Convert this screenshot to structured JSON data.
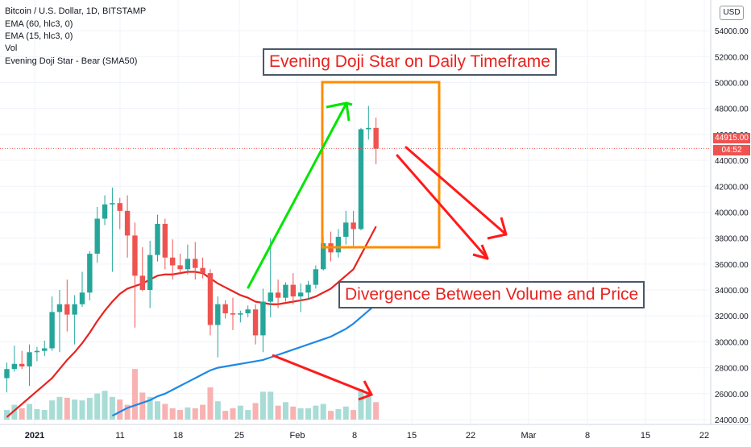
{
  "header": {
    "symbol": "Bitcoin / U.S. Dollar, 1D, BITSTAMP",
    "indicators": [
      "EMA (60, hlc3, 0)",
      "EMA (15, hlc3, 0)",
      "Vol",
      "Evening Doji Star - Bear (SMA50)"
    ]
  },
  "currency_button": "USD",
  "last_price_label": "44915.00",
  "countdown_label": "04:52",
  "annotations": {
    "top": "Evening Doji Star on Daily Timeframe",
    "bottom": "Divergence Between Volume and Price"
  },
  "colors": {
    "up": "#26a69a",
    "down": "#ef5350",
    "ema15": "#e8231f",
    "ema60": "#1e88e5",
    "arrow_green": "#00e600",
    "arrow_red": "#ff1a1a",
    "box": "#ff8c00"
  },
  "chart_data": {
    "type": "candlestick",
    "title": "Bitcoin / U.S. Dollar, 1D, BITSTAMP",
    "x_ticks": [
      "2021",
      "11",
      "18",
      "25",
      "Feb",
      "8",
      "15",
      "22",
      "Mar",
      "8",
      "15",
      "22"
    ],
    "y_ticks": [
      "54000.00",
      "52000.00",
      "50000.00",
      "48000.00",
      "46000.00",
      "44000.00",
      "42000.00",
      "40000.00",
      "38000.00",
      "36000.00",
      "34000.00",
      "32000.00",
      "30000.00",
      "28000.00",
      "26000.00",
      "24000.00"
    ],
    "ylim": [
      24000,
      55500
    ],
    "grid": true,
    "candles": [
      {
        "o": 27200,
        "h": 28400,
        "l": 26100,
        "c": 27900
      },
      {
        "o": 27900,
        "h": 29700,
        "l": 27700,
        "c": 28300
      },
      {
        "o": 28300,
        "h": 29300,
        "l": 27900,
        "c": 28100
      },
      {
        "o": 28100,
        "h": 29800,
        "l": 26600,
        "c": 29200
      },
      {
        "o": 29200,
        "h": 29600,
        "l": 28500,
        "c": 29300
      },
      {
        "o": 29300,
        "h": 30100,
        "l": 28900,
        "c": 29500
      },
      {
        "o": 29500,
        "h": 33500,
        "l": 29300,
        "c": 32300
      },
      {
        "o": 32300,
        "h": 34000,
        "l": 29200,
        "c": 32900
      },
      {
        "o": 32900,
        "h": 34800,
        "l": 30800,
        "c": 32100
      },
      {
        "o": 32100,
        "h": 33600,
        "l": 29800,
        "c": 32900
      },
      {
        "o": 32900,
        "h": 35400,
        "l": 32700,
        "c": 33800
      },
      {
        "o": 33800,
        "h": 37000,
        "l": 33200,
        "c": 36800
      },
      {
        "o": 36800,
        "h": 40400,
        "l": 36100,
        "c": 39500
      },
      {
        "o": 39500,
        "h": 41300,
        "l": 39000,
        "c": 40600
      },
      {
        "o": 40600,
        "h": 41900,
        "l": 35400,
        "c": 40700
      },
      {
        "o": 40700,
        "h": 41100,
        "l": 38700,
        "c": 40100
      },
      {
        "o": 40100,
        "h": 41300,
        "l": 36500,
        "c": 38200
      },
      {
        "o": 38200,
        "h": 39200,
        "l": 31100,
        "c": 35100
      },
      {
        "o": 35100,
        "h": 37300,
        "l": 33900,
        "c": 34000
      },
      {
        "o": 34000,
        "h": 37800,
        "l": 32600,
        "c": 36700
      },
      {
        "o": 36700,
        "h": 39800,
        "l": 36200,
        "c": 39100
      },
      {
        "o": 39100,
        "h": 39500,
        "l": 35600,
        "c": 36500
      },
      {
        "o": 36500,
        "h": 37900,
        "l": 34800,
        "c": 35900
      },
      {
        "o": 35900,
        "h": 36800,
        "l": 35200,
        "c": 35600
      },
      {
        "o": 35600,
        "h": 37500,
        "l": 35200,
        "c": 36400
      },
      {
        "o": 36400,
        "h": 37700,
        "l": 34800,
        "c": 35700
      },
      {
        "o": 35700,
        "h": 36500,
        "l": 34900,
        "c": 35300
      },
      {
        "o": 35300,
        "h": 35600,
        "l": 30500,
        "c": 31300
      },
      {
        "o": 31300,
        "h": 33500,
        "l": 28800,
        "c": 32900
      },
      {
        "o": 32900,
        "h": 33200,
        "l": 31800,
        "c": 32200
      },
      {
        "o": 32200,
        "h": 33400,
        "l": 30900,
        "c": 32100
      },
      {
        "o": 32100,
        "h": 32400,
        "l": 31500,
        "c": 32200
      },
      {
        "o": 32200,
        "h": 32800,
        "l": 31900,
        "c": 32500
      },
      {
        "o": 32500,
        "h": 32900,
        "l": 29800,
        "c": 30500
      },
      {
        "o": 30500,
        "h": 34100,
        "l": 29200,
        "c": 33100
      },
      {
        "o": 33100,
        "h": 38000,
        "l": 31900,
        "c": 33800
      },
      {
        "o": 33800,
        "h": 34800,
        "l": 32600,
        "c": 33400
      },
      {
        "o": 33400,
        "h": 34600,
        "l": 33100,
        "c": 34400
      },
      {
        "o": 34400,
        "h": 35300,
        "l": 32900,
        "c": 33500
      },
      {
        "o": 33500,
        "h": 34500,
        "l": 32300,
        "c": 33800
      },
      {
        "o": 33800,
        "h": 34700,
        "l": 33300,
        "c": 34400
      },
      {
        "o": 34400,
        "h": 35900,
        "l": 34100,
        "c": 35600
      },
      {
        "o": 35600,
        "h": 38100,
        "l": 35500,
        "c": 37600
      },
      {
        "o": 37600,
        "h": 38500,
        "l": 36200,
        "c": 36900
      },
      {
        "o": 36900,
        "h": 38700,
        "l": 36500,
        "c": 38100
      },
      {
        "o": 38100,
        "h": 40100,
        "l": 37500,
        "c": 39200
      },
      {
        "o": 39200,
        "h": 40100,
        "l": 37400,
        "c": 38700
      },
      {
        "o": 38700,
        "h": 46500,
        "l": 38600,
        "c": 46400
      },
      {
        "o": 46400,
        "h": 48200,
        "l": 45600,
        "c": 46500
      },
      {
        "o": 46500,
        "h": 47300,
        "l": 43700,
        "c": 44900
      }
    ],
    "volume": [
      {
        "v": 1100,
        "up": true
      },
      {
        "v": 1700,
        "up": true
      },
      {
        "v": 1300,
        "up": false
      },
      {
        "v": 1800,
        "up": true
      },
      {
        "v": 1200,
        "up": true
      },
      {
        "v": 1100,
        "up": true
      },
      {
        "v": 2200,
        "up": true
      },
      {
        "v": 2600,
        "up": true
      },
      {
        "v": 2500,
        "up": false
      },
      {
        "v": 2300,
        "up": true
      },
      {
        "v": 2200,
        "up": true
      },
      {
        "v": 2500,
        "up": true
      },
      {
        "v": 3000,
        "up": true
      },
      {
        "v": 3300,
        "up": true
      },
      {
        "v": 2600,
        "up": true
      },
      {
        "v": 2300,
        "up": false
      },
      {
        "v": 1700,
        "up": false
      },
      {
        "v": 5800,
        "up": false
      },
      {
        "v": 3100,
        "up": false
      },
      {
        "v": 2600,
        "up": true
      },
      {
        "v": 2100,
        "up": true
      },
      {
        "v": 1800,
        "up": false
      },
      {
        "v": 1300,
        "up": false
      },
      {
        "v": 1100,
        "up": false
      },
      {
        "v": 1400,
        "up": true
      },
      {
        "v": 1300,
        "up": false
      },
      {
        "v": 1700,
        "up": false
      },
      {
        "v": 3700,
        "up": false
      },
      {
        "v": 2100,
        "up": true
      },
      {
        "v": 1000,
        "up": false
      },
      {
        "v": 1300,
        "up": false
      },
      {
        "v": 1600,
        "up": true
      },
      {
        "v": 1100,
        "up": true
      },
      {
        "v": 1900,
        "up": false
      },
      {
        "v": 3200,
        "up": true
      },
      {
        "v": 3200,
        "up": true
      },
      {
        "v": 1600,
        "up": false
      },
      {
        "v": 2000,
        "up": true
      },
      {
        "v": 1500,
        "up": false
      },
      {
        "v": 1300,
        "up": true
      },
      {
        "v": 1300,
        "up": true
      },
      {
        "v": 1600,
        "up": true
      },
      {
        "v": 1800,
        "up": true
      },
      {
        "v": 1000,
        "up": false
      },
      {
        "v": 1200,
        "up": true
      },
      {
        "v": 1500,
        "up": true
      },
      {
        "v": 1100,
        "up": false
      },
      {
        "v": 3500,
        "up": true
      },
      {
        "v": 3000,
        "up": true
      },
      {
        "v": 2000,
        "up": false
      }
    ],
    "ema15": [
      24200,
      24700,
      25200,
      25700,
      26200,
      26700,
      27200,
      27900,
      28600,
      29200,
      29900,
      30700,
      31600,
      32400,
      33100,
      33700,
      34100,
      34300,
      34500,
      34800,
      35100,
      35200,
      35200,
      35300,
      35400,
      35400,
      35300,
      34900,
      34500,
      34200,
      33900,
      33600,
      33400,
      33100,
      33000,
      32900,
      32900,
      33000,
      33100,
      33200,
      33300,
      33500,
      33800,
      34100,
      34600,
      35100,
      35600,
      36700,
      37800,
      38900
    ],
    "ema60": [
      null,
      null,
      null,
      null,
      null,
      null,
      null,
      null,
      null,
      null,
      null,
      null,
      null,
      null,
      24300,
      24600,
      24900,
      25100,
      25300,
      25500,
      25800,
      26000,
      26300,
      26600,
      26900,
      27200,
      27500,
      27800,
      28000,
      28100,
      28200,
      28300,
      28400,
      28500,
      28600,
      28800,
      29000,
      29200,
      29400,
      29600,
      29800,
      30000,
      30200,
      30400,
      30700,
      31000,
      31400,
      31900,
      32400,
      32900
    ]
  }
}
